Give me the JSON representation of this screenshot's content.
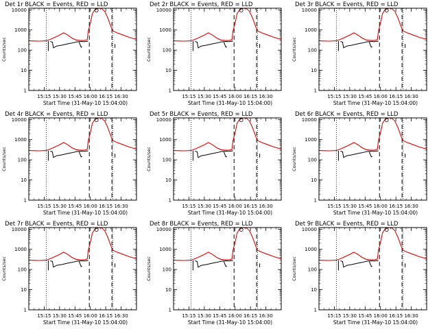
{
  "chart_data": {
    "type": "line",
    "layout": "3x3 grid of panels",
    "xlabel": "Start Time (31-May-10 15:04:00)",
    "ylabel": "Counts/sec",
    "x_unit": "minutes after 15:00",
    "xlim": [
      0,
      105
    ],
    "ylim": [
      1,
      12000
    ],
    "yscale": "log",
    "x_tick_labels": [
      "15:15",
      "15:30",
      "15:45",
      "16:00",
      "16:15",
      "16:30"
    ],
    "x_tick_values": [
      15,
      30,
      45,
      60,
      75,
      90
    ],
    "y_tick_labels": [
      "1",
      "10",
      "100",
      "1000",
      "10000"
    ],
    "y_tick_values": [
      1,
      10,
      100,
      1000,
      10000
    ],
    "vertical_markers": [
      {
        "x": 17,
        "style": "dotted"
      },
      {
        "x": 59,
        "style": "dashed"
      },
      {
        "x": 81,
        "style": "dashed"
      },
      {
        "x": 82,
        "style": "dotted"
      }
    ],
    "series": [
      {
        "name": "LLD",
        "color": "#e00000",
        "points": [
          [
            0,
            290
          ],
          [
            5,
            285
          ],
          [
            10,
            280
          ],
          [
            17,
            290
          ],
          [
            22,
            360
          ],
          [
            30,
            560
          ],
          [
            34,
            720
          ],
          [
            38,
            560
          ],
          [
            42,
            400
          ],
          [
            46,
            320
          ],
          [
            50,
            300
          ],
          [
            54,
            300
          ],
          [
            57,
            330
          ],
          [
            58,
            900
          ],
          [
            60,
            2200
          ],
          [
            62,
            6500
          ],
          [
            64,
            9500
          ],
          [
            66,
            11000
          ],
          [
            68,
            12000
          ],
          [
            71,
            11500
          ],
          [
            74,
            8500
          ],
          [
            77,
            4000
          ],
          [
            80,
            1500
          ],
          [
            82,
            900
          ],
          [
            86,
            720
          ],
          [
            92,
            560
          ],
          [
            98,
            430
          ],
          [
            105,
            340
          ]
        ]
      },
      {
        "name": "Events",
        "color": "#000000",
        "segments": [
          [
            [
              19,
              280
            ],
            [
              19,
              90
            ]
          ],
          [
            [
              21,
              270
            ],
            [
              23,
              250
            ],
            [
              24,
              130
            ],
            [
              27,
              160
            ],
            [
              32,
              175
            ],
            [
              37,
              200
            ],
            [
              42,
              225
            ],
            [
              47,
              260
            ],
            [
              51,
              270
            ],
            [
              54,
              265
            ],
            [
              56,
              270
            ],
            [
              58,
              280
            ]
          ],
          [
            [
              49,
              250
            ],
            [
              51,
              140
            ],
            [
              52,
              150
            ]
          ],
          [
            [
              84,
              200
            ],
            [
              84,
              130
            ]
          ]
        ]
      }
    ],
    "panels": [
      {
        "title": "Det 1r BLACK = Events, RED = LLD"
      },
      {
        "title": "Det 2r BLACK = Events, RED = LLD"
      },
      {
        "title": "Det 3r BLACK = Events, RED = LLD"
      },
      {
        "title": "Det 4r BLACK = Events, RED = LLD"
      },
      {
        "title": "Det 5r BLACK = Events, RED = LLD"
      },
      {
        "title": "Det 6r BLACK = Events, RED = LLD"
      },
      {
        "title": "Det 7r BLACK = Events, RED = LLD"
      },
      {
        "title": "Det 8r BLACK = Events, RED = LLD"
      },
      {
        "title": "Det 9r BLACK = Events, RED = LLD"
      }
    ]
  }
}
